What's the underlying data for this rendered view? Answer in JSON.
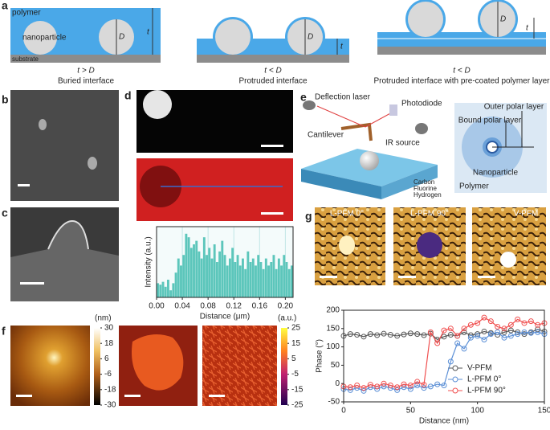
{
  "panel_labels": [
    "a",
    "b",
    "c",
    "d",
    "e",
    "f",
    "g"
  ],
  "schematic_a": {
    "polymer": "polymer",
    "nanoparticle": "nanoparticle",
    "substrate": "substrate",
    "D": "D",
    "t": "t",
    "captions": [
      [
        "t > D",
        "Buried interface"
      ],
      [
        "t < D",
        "Protruded interface"
      ],
      [
        "t < D",
        "Protruded interface with pre-coated polymer layer"
      ]
    ]
  },
  "schematic_e": {
    "deflection_laser": "Deflection laser",
    "photodiode": "Photodiode",
    "cantilever": "Cantilever",
    "ir_source": "IR source",
    "atoms": [
      "Carbon",
      "Fluorine",
      "Hydrogen"
    ],
    "outer": "Outer polar layer",
    "bound": "Bound polar layer",
    "nanoparticle": "Nanoparticle",
    "polymer": "Polymer"
  },
  "afm_colorbar": {
    "unit": "(nm)",
    "ticks": [
      30,
      18,
      6,
      -6,
      -18,
      -30
    ]
  },
  "pfm_colorbar": {
    "unit": "(a.u.)",
    "ticks": [
      25,
      15,
      5,
      -5,
      -15,
      -25
    ]
  },
  "pfm_images": [
    "L-PFM 0°",
    "L-PFM 90°",
    "V-PFM"
  ],
  "chart_data": [
    {
      "type": "bar",
      "x_label": "Distance (μm)",
      "y_label": "Intensity (a.u.)",
      "color": "#5cc6bb",
      "grid": true,
      "x": [
        0.002,
        0.006,
        0.01,
        0.014,
        0.018,
        0.022,
        0.026,
        0.03,
        0.034,
        0.038,
        0.042,
        0.046,
        0.05,
        0.054,
        0.058,
        0.062,
        0.066,
        0.07,
        0.074,
        0.078,
        0.082,
        0.086,
        0.09,
        0.094,
        0.098,
        0.102,
        0.106,
        0.11,
        0.114,
        0.118,
        0.122,
        0.126,
        0.13,
        0.134,
        0.138,
        0.142,
        0.146,
        0.15,
        0.154,
        0.158,
        0.162,
        0.166,
        0.17,
        0.174,
        0.178,
        0.182,
        0.186,
        0.19,
        0.194,
        0.198,
        0.202,
        0.206,
        0.21
      ],
      "values": [
        20,
        18,
        22,
        15,
        25,
        10,
        20,
        35,
        55,
        45,
        60,
        90,
        85,
        70,
        75,
        80,
        65,
        55,
        85,
        60,
        70,
        55,
        75,
        50,
        65,
        80,
        60,
        45,
        55,
        70,
        50,
        60,
        45,
        55,
        40,
        65,
        50,
        55,
        45,
        60,
        50,
        40,
        55,
        45,
        50,
        60,
        40,
        55,
        45,
        60,
        50,
        40,
        45
      ],
      "xlim": [
        0,
        0.212
      ],
      "ylim": [
        0,
        100
      ],
      "xticks": [
        {
          "value": 0,
          "label": "0.00"
        },
        {
          "value": 0.04,
          "label": "0.04"
        },
        {
          "value": 0.08,
          "label": "0.08"
        },
        {
          "value": 0.12,
          "label": "0.12"
        },
        {
          "value": 0.16,
          "label": "0.16"
        },
        {
          "value": 0.2,
          "label": "0.20"
        }
      ]
    },
    {
      "type": "line",
      "x_label": "Distance (nm)",
      "y_label": "Phase (°)",
      "legend": "lower right",
      "x": [
        0,
        5,
        10,
        15,
        20,
        25,
        30,
        35,
        40,
        45,
        50,
        55,
        60,
        65,
        70,
        75,
        80,
        85,
        90,
        95,
        100,
        105,
        110,
        115,
        120,
        125,
        130,
        135,
        140,
        145,
        150
      ],
      "series": [
        {
          "name": "V-PFM",
          "color": "#555555",
          "values": [
            130,
            135,
            133,
            128,
            135,
            132,
            136,
            133,
            130,
            134,
            137,
            135,
            132,
            136,
            120,
            128,
            133,
            130,
            140,
            132,
            135,
            142,
            138,
            133,
            140,
            145,
            140,
            135,
            140,
            148,
            142
          ]
        },
        {
          "name": "L-PFM 0°",
          "color": "#5b8fd6",
          "values": [
            -15,
            -18,
            -12,
            -20,
            -10,
            -15,
            -8,
            -12,
            -18,
            -10,
            -15,
            -5,
            -12,
            -8,
            -2,
            -5,
            60,
            110,
            95,
            125,
            130,
            120,
            135,
            140,
            125,
            130,
            135,
            140,
            138,
            140,
            135
          ]
        },
        {
          "name": "L-PFM 90°",
          "color": "#f05050",
          "values": [
            -8,
            -10,
            -5,
            -12,
            -3,
            -8,
            0,
            -5,
            -10,
            -2,
            -5,
            5,
            -3,
            140,
            110,
            145,
            150,
            130,
            150,
            160,
            165,
            180,
            170,
            155,
            150,
            160,
            175,
            165,
            170,
            160,
            165
          ]
        }
      ],
      "xlim": [
        0,
        150
      ],
      "ylim": [
        -50,
        200
      ],
      "xticks": [
        0,
        50,
        100,
        150
      ],
      "yticks": [
        -50,
        0,
        50,
        100,
        150,
        200
      ]
    }
  ]
}
